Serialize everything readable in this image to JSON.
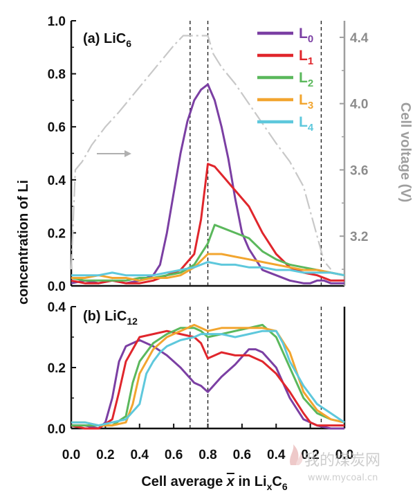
{
  "chart_data": [
    {
      "type": "line",
      "panel_label": "(a) LiC",
      "panel_label_sub": "6",
      "ylabel": "concentration of Li",
      "ylim": [
        0,
        1.0
      ],
      "yticks": [
        "0.0",
        "0.2",
        "0.4",
        "0.6",
        "0.8",
        "1.0"
      ],
      "xlim": [
        0,
        2
      ],
      "right_axis": {
        "label": "Cell voltage (V)",
        "ylim": [
          2.9,
          4.5
        ],
        "ticks": [
          "3.2",
          "3.6",
          "4.0",
          "4.4"
        ],
        "color": "#9e9e9e"
      },
      "vlines_x": [
        0.87,
        1.0,
        1.83
      ],
      "legend": {
        "placement": "top-right",
        "entries": [
          {
            "base": "L",
            "sub": "0",
            "color": "#7b3fa3"
          },
          {
            "base": "L",
            "sub": "1",
            "color": "#e0262c"
          },
          {
            "base": "L",
            "sub": "2",
            "color": "#5bb85c"
          },
          {
            "base": "L",
            "sub": "3",
            "color": "#f2a52f"
          },
          {
            "base": "L",
            "sub": "4",
            "color": "#5ec8dc"
          }
        ]
      },
      "series": [
        {
          "color": "#7b3fa3",
          "x": [
            0,
            0.1,
            0.2,
            0.3,
            0.4,
            0.5,
            0.55,
            0.6,
            0.65,
            0.7,
            0.75,
            0.8,
            0.85,
            0.9,
            0.95,
            1.0,
            1.05,
            1.1,
            1.15,
            1.2,
            1.25,
            1.3,
            1.35,
            1.4,
            1.5,
            1.6,
            1.7,
            1.75,
            1.8,
            1.85,
            1.9,
            1.95,
            2.0
          ],
          "y": [
            0.01,
            0.02,
            0.01,
            0.02,
            0.01,
            0.02,
            0.03,
            0.04,
            0.08,
            0.2,
            0.35,
            0.5,
            0.62,
            0.7,
            0.74,
            0.76,
            0.7,
            0.6,
            0.48,
            0.33,
            0.2,
            0.14,
            0.1,
            0.06,
            0.04,
            0.02,
            0.01,
            0.01,
            0.02,
            0.02,
            0.01,
            0.01,
            0.01
          ]
        },
        {
          "color": "#e0262c",
          "x": [
            0,
            0.1,
            0.2,
            0.3,
            0.4,
            0.5,
            0.6,
            0.7,
            0.8,
            0.9,
            0.95,
            1.0,
            1.05,
            1.1,
            1.2,
            1.3,
            1.4,
            1.5,
            1.6,
            1.7,
            1.8,
            1.9,
            2.0
          ],
          "y": [
            0.02,
            0.01,
            0.01,
            0.02,
            0.01,
            0.01,
            0.02,
            0.04,
            0.06,
            0.12,
            0.25,
            0.46,
            0.45,
            0.42,
            0.36,
            0.3,
            0.2,
            0.12,
            0.07,
            0.05,
            0.04,
            0.02,
            0.02
          ]
        },
        {
          "color": "#5bb85c",
          "x": [
            0,
            0.1,
            0.2,
            0.3,
            0.4,
            0.5,
            0.6,
            0.7,
            0.8,
            0.9,
            1.0,
            1.05,
            1.1,
            1.2,
            1.3,
            1.4,
            1.5,
            1.6,
            1.7,
            1.8,
            1.9,
            2.0
          ],
          "y": [
            0.03,
            0.02,
            0.02,
            0.02,
            0.02,
            0.03,
            0.03,
            0.04,
            0.05,
            0.08,
            0.16,
            0.23,
            0.22,
            0.2,
            0.18,
            0.13,
            0.1,
            0.08,
            0.07,
            0.06,
            0.05,
            0.04
          ]
        },
        {
          "color": "#f2a52f",
          "x": [
            0,
            0.1,
            0.2,
            0.3,
            0.4,
            0.5,
            0.6,
            0.7,
            0.8,
            0.9,
            1.0,
            1.1,
            1.2,
            1.3,
            1.4,
            1.5,
            1.6,
            1.7,
            1.8,
            1.9,
            2.0
          ],
          "y": [
            0.03,
            0.03,
            0.04,
            0.03,
            0.03,
            0.02,
            0.03,
            0.03,
            0.04,
            0.07,
            0.12,
            0.12,
            0.11,
            0.1,
            0.09,
            0.08,
            0.07,
            0.06,
            0.06,
            0.05,
            0.04
          ]
        },
        {
          "color": "#5ec8dc",
          "x": [
            0,
            0.1,
            0.2,
            0.3,
            0.4,
            0.5,
            0.6,
            0.7,
            0.8,
            0.9,
            1.0,
            1.1,
            1.2,
            1.3,
            1.4,
            1.5,
            1.6,
            1.7,
            1.8,
            1.9,
            2.0
          ],
          "y": [
            0.04,
            0.04,
            0.04,
            0.05,
            0.04,
            0.04,
            0.04,
            0.05,
            0.06,
            0.07,
            0.09,
            0.08,
            0.08,
            0.07,
            0.07,
            0.06,
            0.06,
            0.05,
            0.05,
            0.05,
            0.04
          ]
        },
        {
          "color": "#c8c8c8",
          "axis": "right",
          "dashed": true,
          "x": [
            0,
            0.03,
            0.08,
            0.15,
            0.25,
            0.35,
            0.45,
            0.55,
            0.65,
            0.75,
            0.82,
            0.9,
            1.0,
            1.04,
            1.1,
            1.2,
            1.3,
            1.4,
            1.5,
            1.6,
            1.7,
            1.75,
            1.8,
            1.85,
            1.9
          ],
          "y": [
            3.0,
            3.6,
            3.65,
            3.75,
            3.86,
            3.95,
            4.05,
            4.15,
            4.25,
            4.35,
            4.41,
            4.41,
            4.41,
            4.3,
            4.22,
            4.12,
            4.0,
            3.88,
            3.76,
            3.65,
            3.5,
            3.35,
            3.2,
            3.05,
            3.0
          ]
        }
      ]
    },
    {
      "type": "line",
      "panel_label": "(b) LiC",
      "panel_label_sub": "12",
      "ylim": [
        0,
        0.4
      ],
      "yticks": [
        "0.0",
        "0.2",
        "0.4"
      ],
      "xlim": [
        0,
        2
      ],
      "xticks": [
        "0.0",
        "0.2",
        "0.4",
        "0.6",
        "0.8",
        "0.6",
        "0.4",
        "0.2",
        "0.0"
      ],
      "vlines_x": [
        0.87,
        1.0,
        1.83
      ],
      "series": [
        {
          "color": "#7b3fa3",
          "x": [
            0,
            0.1,
            0.2,
            0.25,
            0.3,
            0.35,
            0.4,
            0.45,
            0.5,
            0.6,
            0.7,
            0.8,
            0.9,
            0.95,
            1.0,
            1.1,
            1.2,
            1.3,
            1.35,
            1.4,
            1.5,
            1.6,
            1.7,
            1.8,
            1.9,
            2.0
          ],
          "y": [
            0.01,
            0.01,
            0.0,
            0.02,
            0.1,
            0.22,
            0.27,
            0.28,
            0.29,
            0.27,
            0.24,
            0.2,
            0.15,
            0.14,
            0.12,
            0.17,
            0.21,
            0.26,
            0.26,
            0.25,
            0.2,
            0.1,
            0.03,
            0.01,
            0.0,
            0.0
          ]
        },
        {
          "color": "#e0262c",
          "x": [
            0,
            0.1,
            0.2,
            0.3,
            0.35,
            0.4,
            0.45,
            0.5,
            0.6,
            0.7,
            0.8,
            0.9,
            0.95,
            1.0,
            1.1,
            1.2,
            1.3,
            1.4,
            1.5,
            1.6,
            1.7,
            1.75,
            1.8,
            1.9,
            2.0
          ],
          "y": [
            0.01,
            0.0,
            0.0,
            0.03,
            0.12,
            0.22,
            0.26,
            0.3,
            0.31,
            0.32,
            0.31,
            0.3,
            0.28,
            0.23,
            0.25,
            0.24,
            0.24,
            0.22,
            0.18,
            0.12,
            0.05,
            0.02,
            0.01,
            0.01,
            0.01
          ]
        },
        {
          "color": "#5bb85c",
          "x": [
            0,
            0.1,
            0.2,
            0.3,
            0.4,
            0.45,
            0.5,
            0.6,
            0.7,
            0.8,
            0.9,
            0.95,
            1.0,
            1.1,
            1.2,
            1.3,
            1.4,
            1.5,
            1.6,
            1.7,
            1.8,
            1.9,
            2.0
          ],
          "y": [
            0.01,
            0.01,
            0.01,
            0.01,
            0.04,
            0.15,
            0.22,
            0.28,
            0.31,
            0.33,
            0.33,
            0.32,
            0.3,
            0.31,
            0.32,
            0.33,
            0.34,
            0.3,
            0.2,
            0.1,
            0.05,
            0.03,
            0.02
          ]
        },
        {
          "color": "#f2a52f",
          "x": [
            0,
            0.1,
            0.2,
            0.3,
            0.4,
            0.45,
            0.5,
            0.6,
            0.7,
            0.8,
            0.9,
            0.95,
            1.0,
            1.1,
            1.2,
            1.3,
            1.4,
            1.5,
            1.6,
            1.7,
            1.8,
            1.9,
            2.0
          ],
          "y": [
            0.02,
            0.02,
            0.01,
            0.01,
            0.02,
            0.08,
            0.18,
            0.26,
            0.3,
            0.32,
            0.34,
            0.33,
            0.32,
            0.33,
            0.33,
            0.33,
            0.33,
            0.32,
            0.25,
            0.12,
            0.06,
            0.03,
            0.02
          ]
        },
        {
          "color": "#5ec8dc",
          "x": [
            0,
            0.1,
            0.2,
            0.3,
            0.4,
            0.5,
            0.55,
            0.6,
            0.65,
            0.7,
            0.8,
            0.9,
            0.95,
            1.0,
            1.1,
            1.2,
            1.3,
            1.4,
            1.5,
            1.55,
            1.6,
            1.7,
            1.8,
            1.9,
            2.0
          ],
          "y": [
            0.02,
            0.02,
            0.01,
            0.02,
            0.03,
            0.08,
            0.18,
            0.22,
            0.25,
            0.27,
            0.29,
            0.3,
            0.31,
            0.31,
            0.31,
            0.3,
            0.31,
            0.32,
            0.32,
            0.28,
            0.22,
            0.14,
            0.08,
            0.05,
            0.02
          ]
        }
      ]
    }
  ],
  "xlabel": {
    "pre": "Cell average ",
    "var": "x",
    "mid": " in Li",
    "sub1": "x",
    "post": "C",
    "sub2": "6"
  },
  "watermark": {
    "text": "我的煤炭网",
    "url": "www.mycoal.cn"
  }
}
